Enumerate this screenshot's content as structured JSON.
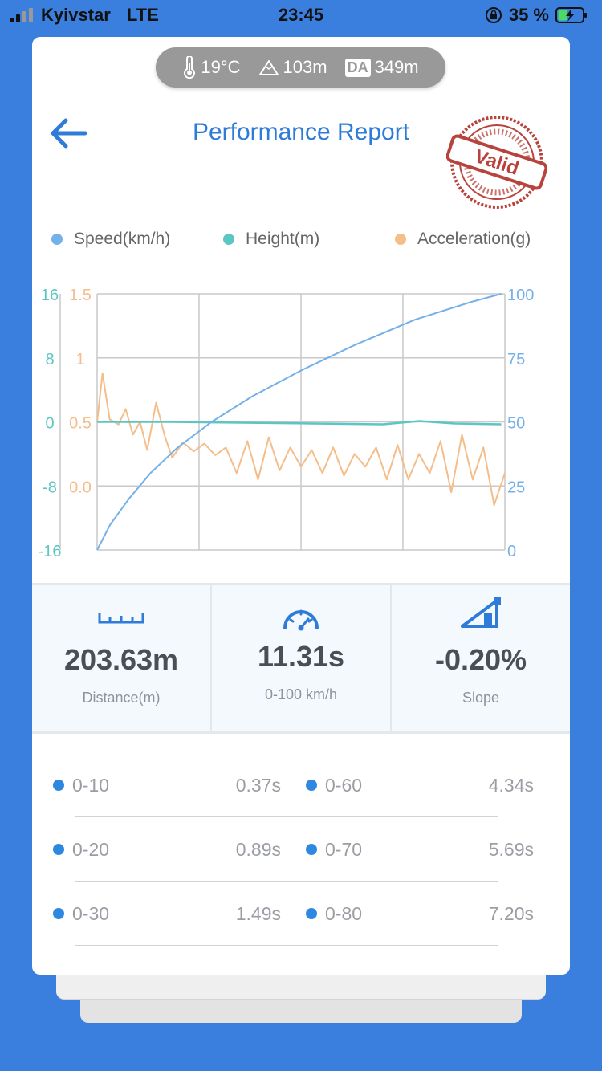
{
  "status": {
    "carrier": "Kyivstar",
    "network": "LTE",
    "time": "23:45",
    "battery": "35 %"
  },
  "conditions": {
    "temperature": "19°C",
    "altitude": "103m",
    "da_badge": "DA",
    "density_altitude": "349m"
  },
  "header": {
    "title": "Performance Report",
    "stamp_text": "Valid"
  },
  "legend": [
    {
      "label": "Speed(km/h)",
      "color": "#74b0ea"
    },
    {
      "label": "Height(m)",
      "color": "#5cc6c2"
    },
    {
      "label": "Acceleration(g)",
      "color": "#f4bd8a"
    }
  ],
  "chart_data": {
    "type": "line",
    "x_axis": {
      "range": [
        0,
        11.4
      ],
      "grid_lines": 4,
      "labels": "none"
    },
    "y_axes": [
      {
        "name": "Height(m)",
        "side": "left",
        "ticks": [
          "16",
          "8",
          "0",
          "-8",
          "-16"
        ],
        "range": [
          -16,
          16
        ],
        "color": "#5cc6c2"
      },
      {
        "name": "Acceleration(g)",
        "side": "left",
        "ticks": [
          "1.5",
          "1",
          "0.5",
          "0.0"
        ],
        "range": [
          -0.5,
          1.5
        ],
        "color": "#f4bd8a"
      },
      {
        "name": "Speed(km/h)",
        "side": "right",
        "ticks": [
          "100",
          "75",
          "50",
          "25",
          "0"
        ],
        "range": [
          0,
          100
        ],
        "color": "#74b0ea"
      }
    ],
    "grid": true,
    "series": [
      {
        "name": "Speed(km/h)",
        "color": "#74b0ea",
        "x": [
          0,
          0.37,
          0.89,
          1.49,
          2.25,
          3.2,
          4.34,
          5.69,
          7.2,
          8.9,
          10.5,
          11.3
        ],
        "y": [
          0,
          10,
          20,
          30,
          40,
          50,
          60,
          70,
          80,
          90,
          97,
          100
        ]
      },
      {
        "name": "Height(m)",
        "color": "#5cc6c2",
        "x": [
          0,
          2,
          4,
          6,
          8,
          9,
          10,
          11.3
        ],
        "y": [
          0,
          0,
          -0.1,
          -0.2,
          -0.3,
          0.1,
          -0.2,
          -0.3
        ]
      },
      {
        "name": "Acceleration(g)",
        "color": "#f4bd8a",
        "x": [
          0,
          0.15,
          0.35,
          0.6,
          0.8,
          1.0,
          1.2,
          1.4,
          1.65,
          1.9,
          2.1,
          2.4,
          2.7,
          3.0,
          3.3,
          3.6,
          3.9,
          4.2,
          4.5,
          4.8,
          5.1,
          5.4,
          5.7,
          6.0,
          6.3,
          6.6,
          6.9,
          7.2,
          7.5,
          7.8,
          8.1,
          8.4,
          8.7,
          9.0,
          9.3,
          9.6,
          9.9,
          10.2,
          10.5,
          10.8,
          11.1,
          11.4
        ],
        "y": [
          0.5,
          0.88,
          0.52,
          0.48,
          0.6,
          0.4,
          0.5,
          0.28,
          0.65,
          0.38,
          0.22,
          0.34,
          0.27,
          0.33,
          0.24,
          0.3,
          0.1,
          0.35,
          0.05,
          0.38,
          0.12,
          0.3,
          0.15,
          0.28,
          0.1,
          0.3,
          0.08,
          0.25,
          0.15,
          0.3,
          0.05,
          0.32,
          0.05,
          0.25,
          0.1,
          0.35,
          -0.05,
          0.4,
          0.05,
          0.3,
          -0.15,
          0.1
        ]
      }
    ]
  },
  "stats": [
    {
      "value": "203.63m",
      "label": "Distance(m)",
      "icon": "ruler-icon"
    },
    {
      "value": "11.31s",
      "label": "0-100 km/h",
      "icon": "speedometer-icon"
    },
    {
      "value": "-0.20%",
      "label": "Slope",
      "icon": "slope-icon"
    }
  ],
  "times": [
    {
      "label": "0-10",
      "value": "0.37s"
    },
    {
      "label": "0-60",
      "value": "4.34s"
    },
    {
      "label": "0-20",
      "value": "0.89s"
    },
    {
      "label": "0-70",
      "value": "5.69s"
    },
    {
      "label": "0-30",
      "value": "1.49s"
    },
    {
      "label": "0-80",
      "value": "7.20s"
    }
  ]
}
